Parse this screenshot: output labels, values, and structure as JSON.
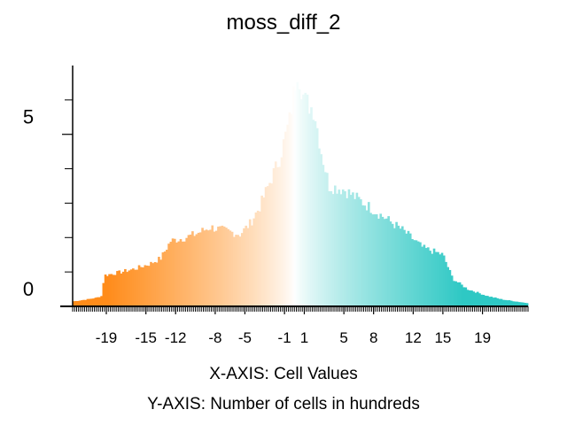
{
  "chart_data": {
    "type": "bar",
    "title": "moss_diff_2",
    "xlabel": "X-AXIS: Cell Values",
    "ylabel": "Y-AXIS: Number of cells in hundreds",
    "ylim": [
      0,
      7
    ],
    "xlim": [
      -22.4,
      23.6
    ],
    "yticks": [
      {
        "value": 0,
        "label": "0"
      },
      {
        "value": 5,
        "label": "5"
      }
    ],
    "yminor": [
      1,
      2,
      3,
      4,
      6
    ],
    "xticks": [
      {
        "value": -19,
        "label": "-19"
      },
      {
        "value": -15,
        "label": "-15"
      },
      {
        "value": -12,
        "label": "-12"
      },
      {
        "value": -8,
        "label": "-8"
      },
      {
        "value": -5,
        "label": "-5"
      },
      {
        "value": -1,
        "label": "-1"
      },
      {
        "value": 1,
        "label": "1"
      },
      {
        "value": 5,
        "label": "5"
      },
      {
        "value": 8,
        "label": "8"
      },
      {
        "value": 12,
        "label": "12"
      },
      {
        "value": 15,
        "label": "15"
      },
      {
        "value": 19,
        "label": "19"
      }
    ],
    "colors": {
      "negative": "#ff8c1a",
      "center": "#ffffff",
      "positive": "#2ec8c4"
    },
    "anchors": [
      [
        -22.2,
        0.15
      ],
      [
        -21.0,
        0.2
      ],
      [
        -20.0,
        0.25
      ],
      [
        -19.5,
        0.3
      ],
      [
        -19.2,
        0.9
      ],
      [
        -17.5,
        1.0
      ],
      [
        -16.0,
        1.1
      ],
      [
        -14.5,
        1.25
      ],
      [
        -13.5,
        1.4
      ],
      [
        -12.5,
        1.9
      ],
      [
        -11.0,
        2.0
      ],
      [
        -10.0,
        2.1
      ],
      [
        -8.5,
        2.3
      ],
      [
        -7.0,
        2.2
      ],
      [
        -5.5,
        2.1
      ],
      [
        -4.5,
        2.4
      ],
      [
        -3.5,
        2.9
      ],
      [
        -2.5,
        3.6
      ],
      [
        -1.5,
        4.3
      ],
      [
        -0.5,
        5.4
      ],
      [
        0.3,
        6.9
      ],
      [
        1.0,
        6.0
      ],
      [
        2.0,
        5.7
      ],
      [
        2.7,
        4.5
      ],
      [
        3.5,
        3.5
      ],
      [
        5.0,
        3.4
      ],
      [
        7.0,
        3.0
      ],
      [
        9.0,
        2.6
      ],
      [
        11.0,
        2.2
      ],
      [
        13.0,
        1.7
      ],
      [
        15.0,
        1.5
      ],
      [
        16.0,
        0.8
      ],
      [
        17.5,
        0.5
      ],
      [
        19.5,
        0.3
      ],
      [
        21.0,
        0.2
      ],
      [
        23.4,
        0.1
      ]
    ]
  }
}
